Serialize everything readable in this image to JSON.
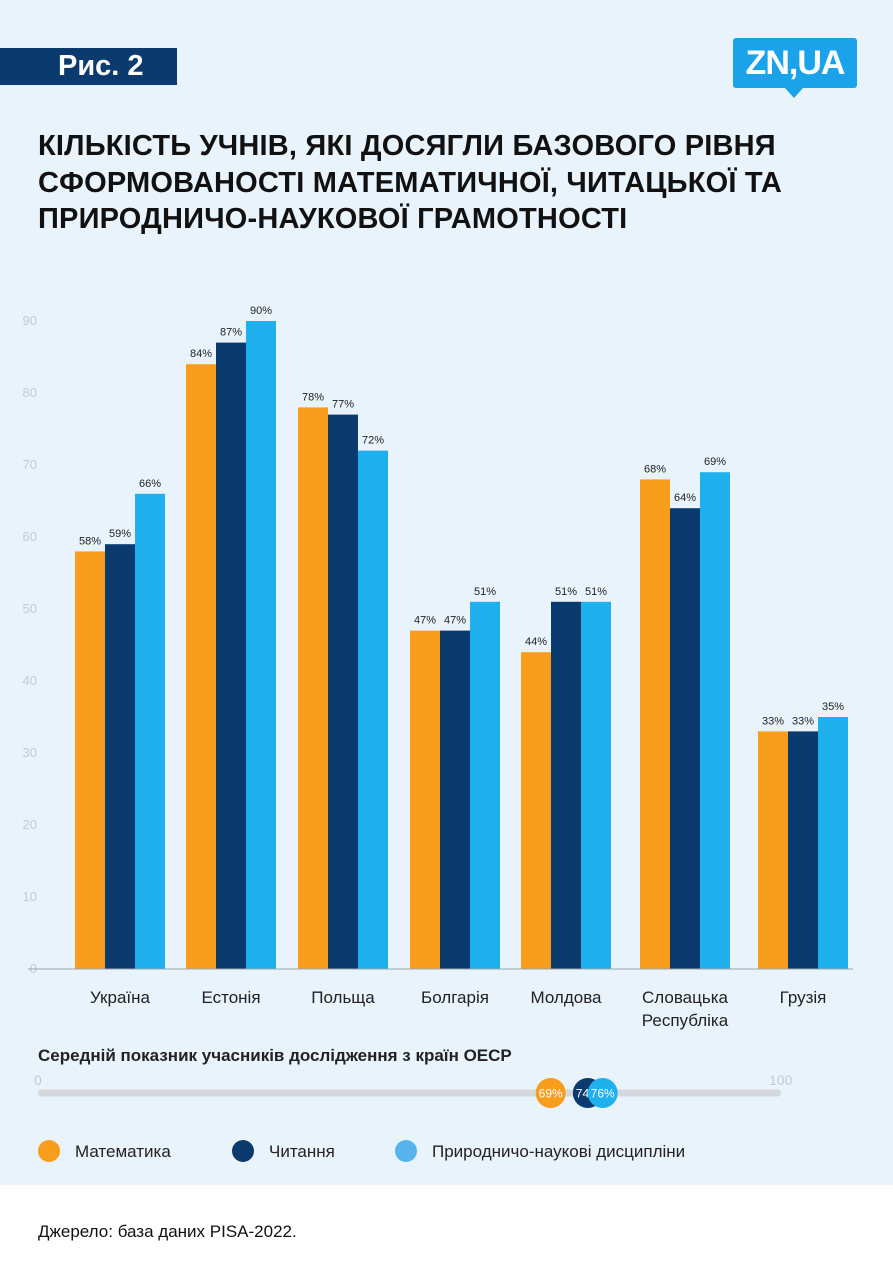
{
  "header": {
    "figure_label": "Рис. 2",
    "logo_text": "ZN,UA"
  },
  "title": "КІЛЬКІСТЬ УЧНІВ, ЯКІ  ДОСЯГЛИ БАЗОВОГО РІВНЯ СФОРМОВАНОСТІ МАТЕМАТИЧНОЇ, ЧИТАЦЬКОЇ ТА ПРИРОДНИЧО-НАУКОВОЇ ГРАМОТНОСТІ",
  "colors": {
    "math": "#f99d1c",
    "reading": "#0b3a6f",
    "science": "#1fb0ee",
    "legend_science": "#56b3ee",
    "navy": "#0b3a6f",
    "background": "#e8f3fb"
  },
  "chart_data": {
    "type": "bar",
    "categories": [
      "Україна",
      "Естонія",
      "Польща",
      "Болгарія",
      "Молдова",
      "Словацька Республіка",
      "Грузія"
    ],
    "category_lines": [
      [
        "Україна"
      ],
      [
        "Естонія"
      ],
      [
        "Польща"
      ],
      [
        "Болгарія"
      ],
      [
        "Молдова"
      ],
      [
        "Словацька",
        "Республіка"
      ],
      [
        "Грузія"
      ]
    ],
    "series": [
      {
        "name": "Математика",
        "values": [
          58,
          84,
          78,
          47,
          44,
          68,
          33
        ],
        "labels": [
          "58%",
          "84%",
          "78%",
          "47%",
          "44%",
          "68%",
          "33%"
        ]
      },
      {
        "name": "Читання",
        "values": [
          59,
          87,
          77,
          47,
          51,
          64,
          33
        ],
        "labels": [
          "59%",
          "87%",
          "77%",
          "47%",
          "51%",
          "64%",
          "33%"
        ]
      },
      {
        "name": "Природничо-наукові дисципліни",
        "values": [
          66,
          90,
          72,
          51,
          51,
          69,
          35
        ],
        "labels": [
          "66%",
          "90%",
          "72%",
          "51%",
          "51%",
          "69%",
          "35%"
        ]
      }
    ],
    "y_ticks": [
      0,
      10,
      20,
      30,
      40,
      50,
      60,
      70,
      80,
      90
    ],
    "ylim": [
      0,
      92
    ],
    "grid": false,
    "legend_position": "bottom"
  },
  "oecd": {
    "caption": "Середній показник учасників дослідження з країн ОЕСР",
    "scale_min": "0",
    "scale_max": "100",
    "markers": [
      {
        "subject": "math",
        "value": 69,
        "label": "69%"
      },
      {
        "subject": "reading",
        "value": 74,
        "label": "74%"
      },
      {
        "subject": "science",
        "value": 76,
        "label": "76%"
      }
    ]
  },
  "legend": {
    "math": "Математика",
    "reading": "Читання",
    "science": "Природничо-наукові дисципліни"
  },
  "source": "Джерело: база даних PISA-2022."
}
